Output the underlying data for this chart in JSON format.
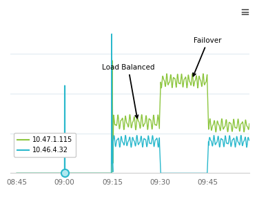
{
  "background_color": "#ffffff",
  "plot_bg_color": "#ffffff",
  "grid_color": "#dde8f0",
  "x_ticks_labels": [
    "08:45",
    "09:00",
    "09:15",
    "09:30",
    "09:45"
  ],
  "x_ticks_pos": [
    0,
    15,
    30,
    45,
    60
  ],
  "xlim": [
    -2,
    73
  ],
  "ylim": [
    0,
    1.0
  ],
  "color_green": "#8dc63f",
  "color_cyan": "#29b8cc",
  "legend_labels": [
    "10.47.1.115",
    "10.46.4.32"
  ],
  "annotation_lb": "Load Balanced",
  "annotation_fo": "Failover",
  "hamburger_color": "#666666",
  "n_points": 3000
}
